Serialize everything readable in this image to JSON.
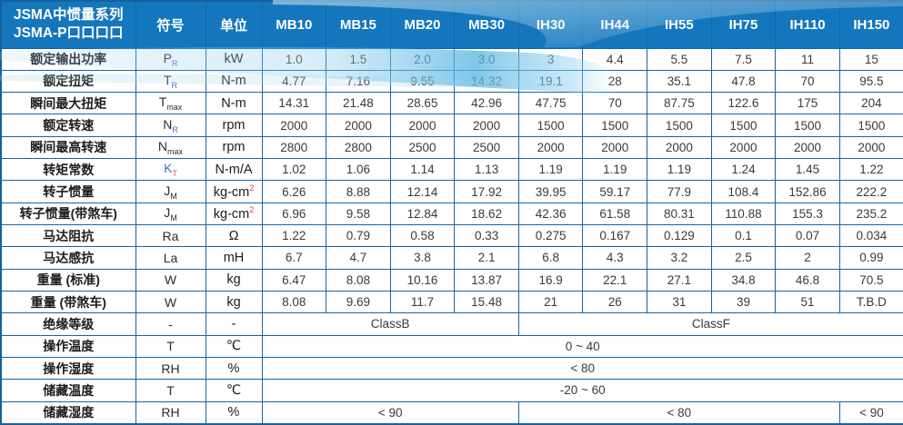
{
  "header": {
    "title_line1": "JSMA中惯量系列",
    "title_line2": "JSMA-P口口口口",
    "symbol_col": "符号",
    "unit_col": "单位",
    "models": [
      "MB10",
      "MB15",
      "MB20",
      "MB30",
      "IH30",
      "IH44",
      "IH55",
      "IH75",
      "IH110",
      "IH150"
    ]
  },
  "rows": [
    {
      "label": "额定输出功率",
      "sym": "P",
      "sym_style": "dark",
      "sub": "R",
      "sub_style": "blue",
      "unit": "kW",
      "unit_sup": "",
      "values": [
        "1.0",
        "1.5",
        "2.0",
        "3.0",
        "3",
        "4.4",
        "5.5",
        "7.5",
        "11",
        "15"
      ]
    },
    {
      "label": "额定扭矩",
      "sym": "T",
      "sym_style": "dark",
      "sub": "R",
      "sub_style": "blue",
      "unit": "N-m",
      "unit_sup": "",
      "values": [
        "4.77",
        "7.16",
        "9.55",
        "14.32",
        "19.1",
        "28",
        "35.1",
        "47.8",
        "70",
        "95.5"
      ]
    },
    {
      "label": "瞬间最大扭矩",
      "sym": "T",
      "sym_style": "dark",
      "sub": "max",
      "sub_style": "dark",
      "unit": "N-m",
      "unit_sup": "",
      "values": [
        "14.31",
        "21.48",
        "28.65",
        "42.96",
        "47.75",
        "70",
        "87.75",
        "122.6",
        "175",
        "204"
      ]
    },
    {
      "label": "额定转速",
      "sym": "N",
      "sym_style": "dark",
      "sub": "R",
      "sub_style": "blue",
      "unit": "rpm",
      "unit_sup": "",
      "values": [
        "2000",
        "2000",
        "2000",
        "2000",
        "1500",
        "1500",
        "1500",
        "1500",
        "1500",
        "1500"
      ]
    },
    {
      "label": "瞬间最高转速",
      "sym": "N",
      "sym_style": "dark",
      "sub": "max",
      "sub_style": "dark",
      "unit": "rpm",
      "unit_sup": "",
      "values": [
        "2800",
        "2800",
        "2500",
        "2500",
        "2000",
        "2000",
        "2000",
        "2000",
        "2000",
        "2000"
      ]
    },
    {
      "label": "转矩常数",
      "sym": "K",
      "sym_style": "blue",
      "sub": "T",
      "sub_style": "red",
      "unit": "N-m/A",
      "unit_sup": "",
      "values": [
        "1.02",
        "1.06",
        "1.14",
        "1.13",
        "1.19",
        "1.19",
        "1.19",
        "1.24",
        "1.45",
        "1.22"
      ]
    },
    {
      "label": "转子惯量",
      "sym": "J",
      "sym_style": "dark",
      "sub": "M",
      "sub_style": "dark",
      "unit": "kg-cm",
      "unit_sup": "2",
      "values": [
        "6.26",
        "8.88",
        "12.14",
        "17.92",
        "39.95",
        "59.17",
        "77.9",
        "108.4",
        "152.86",
        "222.2"
      ]
    },
    {
      "label": "转子惯量(带煞车)",
      "sym": "J",
      "sym_style": "dark",
      "sub": "M",
      "sub_style": "dark",
      "unit": "kg-cm",
      "unit_sup": "2",
      "values": [
        "6.96",
        "9.58",
        "12.84",
        "18.62",
        "42.36",
        "61.58",
        "80.31",
        "110.88",
        "155.3",
        "235.2"
      ]
    },
    {
      "label": "马达阻抗",
      "sym": "Ra",
      "sym_style": "dark",
      "sub": "",
      "sub_style": "",
      "unit": "Ω",
      "unit_sup": "",
      "values": [
        "1.22",
        "0.79",
        "0.58",
        "0.33",
        "0.275",
        "0.167",
        "0.129",
        "0.1",
        "0.07",
        "0.034"
      ]
    },
    {
      "label": "马达感抗",
      "sym": "La",
      "sym_style": "dark",
      "sub": "",
      "sub_style": "",
      "unit": "mH",
      "unit_sup": "",
      "values": [
        "6.7",
        "4.7",
        "3.8",
        "2.1",
        "6.8",
        "4.3",
        "3.2",
        "2.5",
        "2",
        "0.99"
      ]
    },
    {
      "label": "重量 (标准)",
      "sym": "W",
      "sym_style": "dark",
      "sub": "",
      "sub_style": "",
      "unit": "kg",
      "unit_sup": "",
      "values": [
        "6.47",
        "8.08",
        "10.16",
        "13.87",
        "16.9",
        "22.1",
        "27.1",
        "34.8",
        "46.8",
        "70.5"
      ]
    },
    {
      "label": "重量 (带煞车)",
      "sym": "W",
      "sym_style": "dark",
      "sub": "",
      "sub_style": "",
      "unit": "kg",
      "unit_sup": "",
      "values": [
        "8.08",
        "9.69",
        "11.7",
        "15.48",
        "21",
        "26",
        "31",
        "39",
        "51",
        "T.B.D"
      ]
    },
    {
      "label": "绝缘等级",
      "sym": "-",
      "sym_style": "dark",
      "sub": "",
      "sub_style": "",
      "unit": "-",
      "unit_sup": "",
      "spans": [
        {
          "text": "ClassB",
          "cols": 4
        },
        {
          "text": "ClassF",
          "cols": 6
        }
      ]
    },
    {
      "label": "操作温度",
      "sym": "T",
      "sym_style": "dark",
      "sub": "",
      "sub_style": "",
      "unit": "℃",
      "unit_sup": "",
      "spans": [
        {
          "text": "0 ~ 40",
          "cols": 10
        }
      ]
    },
    {
      "label": "操作湿度",
      "sym": "RH",
      "sym_style": "dark",
      "sub": "",
      "sub_style": "",
      "unit": "%",
      "unit_sup": "",
      "spans": [
        {
          "text": "< 80",
          "cols": 10
        }
      ]
    },
    {
      "label": "储藏温度",
      "sym": "T",
      "sym_style": "dark",
      "sub": "",
      "sub_style": "",
      "unit": "℃",
      "unit_sup": "",
      "spans": [
        {
          "text": "-20 ~ 60",
          "cols": 10
        }
      ]
    },
    {
      "label": "储藏湿度",
      "sym": "RH",
      "sym_style": "dark",
      "sub": "",
      "sub_style": "",
      "unit": "%",
      "unit_sup": "",
      "spans": [
        {
          "text": "< 90",
          "cols": 4
        },
        {
          "text": "< 80",
          "cols": 5
        },
        {
          "text": "< 90",
          "cols": 1
        }
      ]
    }
  ],
  "colors": {
    "header_bg": "#1477bd",
    "grid_border": "#1465a5",
    "body_text": "#3a3a3a",
    "subscript_blue": "#4472c4",
    "subscript_red": "#c0504d",
    "wave_cyan": "#6fc0e6"
  }
}
